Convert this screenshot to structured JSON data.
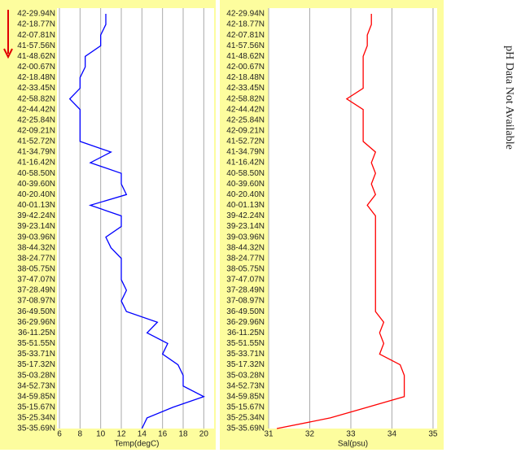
{
  "chart_data": [
    {
      "type": "line",
      "orientation": "horizontal",
      "xlabel": "Temp(degC)",
      "categories": [
        "42-29.94N",
        "42-18.77N",
        "42-07.81N",
        "41-57.56N",
        "41-48.62N",
        "42-00.67N",
        "42-18.48N",
        "42-33.45N",
        "42-58.82N",
        "42-44.42N",
        "42-25.84N",
        "42-09.21N",
        "41-52.72N",
        "41-34.79N",
        "41-16.42N",
        "40-58.50N",
        "40-39.60N",
        "40-20.40N",
        "40-01.13N",
        "39-42.24N",
        "39-23.14N",
        "39-03.96N",
        "38-44.32N",
        "38-24.77N",
        "38-05.75N",
        "37-47.07N",
        "37-28.49N",
        "37-08.97N",
        "36-49.50N",
        "36-29.96N",
        "36-11.25N",
        "35-51.55N",
        "35-33.71N",
        "35-17.32N",
        "35-03.28N",
        "34-52.73N",
        "34-59.85N",
        "35-15.67N",
        "35-25.34N",
        "35-35.69N"
      ],
      "series": [
        {
          "color": "#0000ff",
          "values": [
            10.5,
            10.5,
            10,
            10,
            8.5,
            8.5,
            8,
            8,
            7,
            8,
            8,
            8,
            8,
            11,
            9,
            12,
            12,
            12.5,
            9,
            12,
            12,
            10.5,
            11,
            12,
            12,
            12,
            12.5,
            12,
            12.5,
            15.5,
            14.5,
            16.5,
            16,
            17.5,
            18,
            18,
            20,
            17,
            14.5,
            14
          ]
        }
      ],
      "xlim": [
        6,
        21
      ],
      "xticks": [
        6,
        8,
        10,
        12,
        14,
        16,
        18,
        20
      ],
      "grid": true
    },
    {
      "type": "line",
      "orientation": "horizontal",
      "xlabel": "Sal(psu)",
      "categories": [
        "42-29.94N",
        "42-18.77N",
        "42-07.81N",
        "41-57.56N",
        "41-48.62N",
        "42-00.67N",
        "42-18.48N",
        "42-33.45N",
        "42-58.82N",
        "42-44.42N",
        "42-25.84N",
        "42-09.21N",
        "41-52.72N",
        "41-34.79N",
        "41-16.42N",
        "40-58.50N",
        "40-39.60N",
        "40-20.40N",
        "40-01.13N",
        "39-42.24N",
        "39-23.14N",
        "39-03.96N",
        "38-44.32N",
        "38-24.77N",
        "38-05.75N",
        "37-47.07N",
        "37-28.49N",
        "37-08.97N",
        "36-49.50N",
        "36-29.96N",
        "36-11.25N",
        "35-51.55N",
        "35-33.71N",
        "35-17.32N",
        "35-03.28N",
        "34-52.73N",
        "34-59.85N",
        "35-15.67N",
        "35-25.34N",
        "35-35.69N"
      ],
      "series": [
        {
          "color": "#ff0000",
          "values": [
            33.5,
            33.5,
            33.4,
            33.4,
            33.3,
            33.3,
            33.3,
            33.3,
            32.9,
            33.3,
            33.3,
            33.3,
            33.3,
            33.6,
            33.5,
            33.6,
            33.5,
            33.6,
            33.4,
            33.6,
            33.6,
            33.6,
            33.6,
            33.6,
            33.6,
            33.6,
            33.6,
            33.6,
            33.6,
            33.8,
            33.7,
            33.8,
            33.7,
            34.2,
            34.3,
            34.3,
            34.3,
            33.4,
            32.5,
            31.2
          ]
        }
      ],
      "xlim": [
        31,
        35.1
      ],
      "xticks": [
        31,
        32,
        33,
        34,
        35
      ],
      "grid": true
    }
  ],
  "note": "pH Data Not Available"
}
